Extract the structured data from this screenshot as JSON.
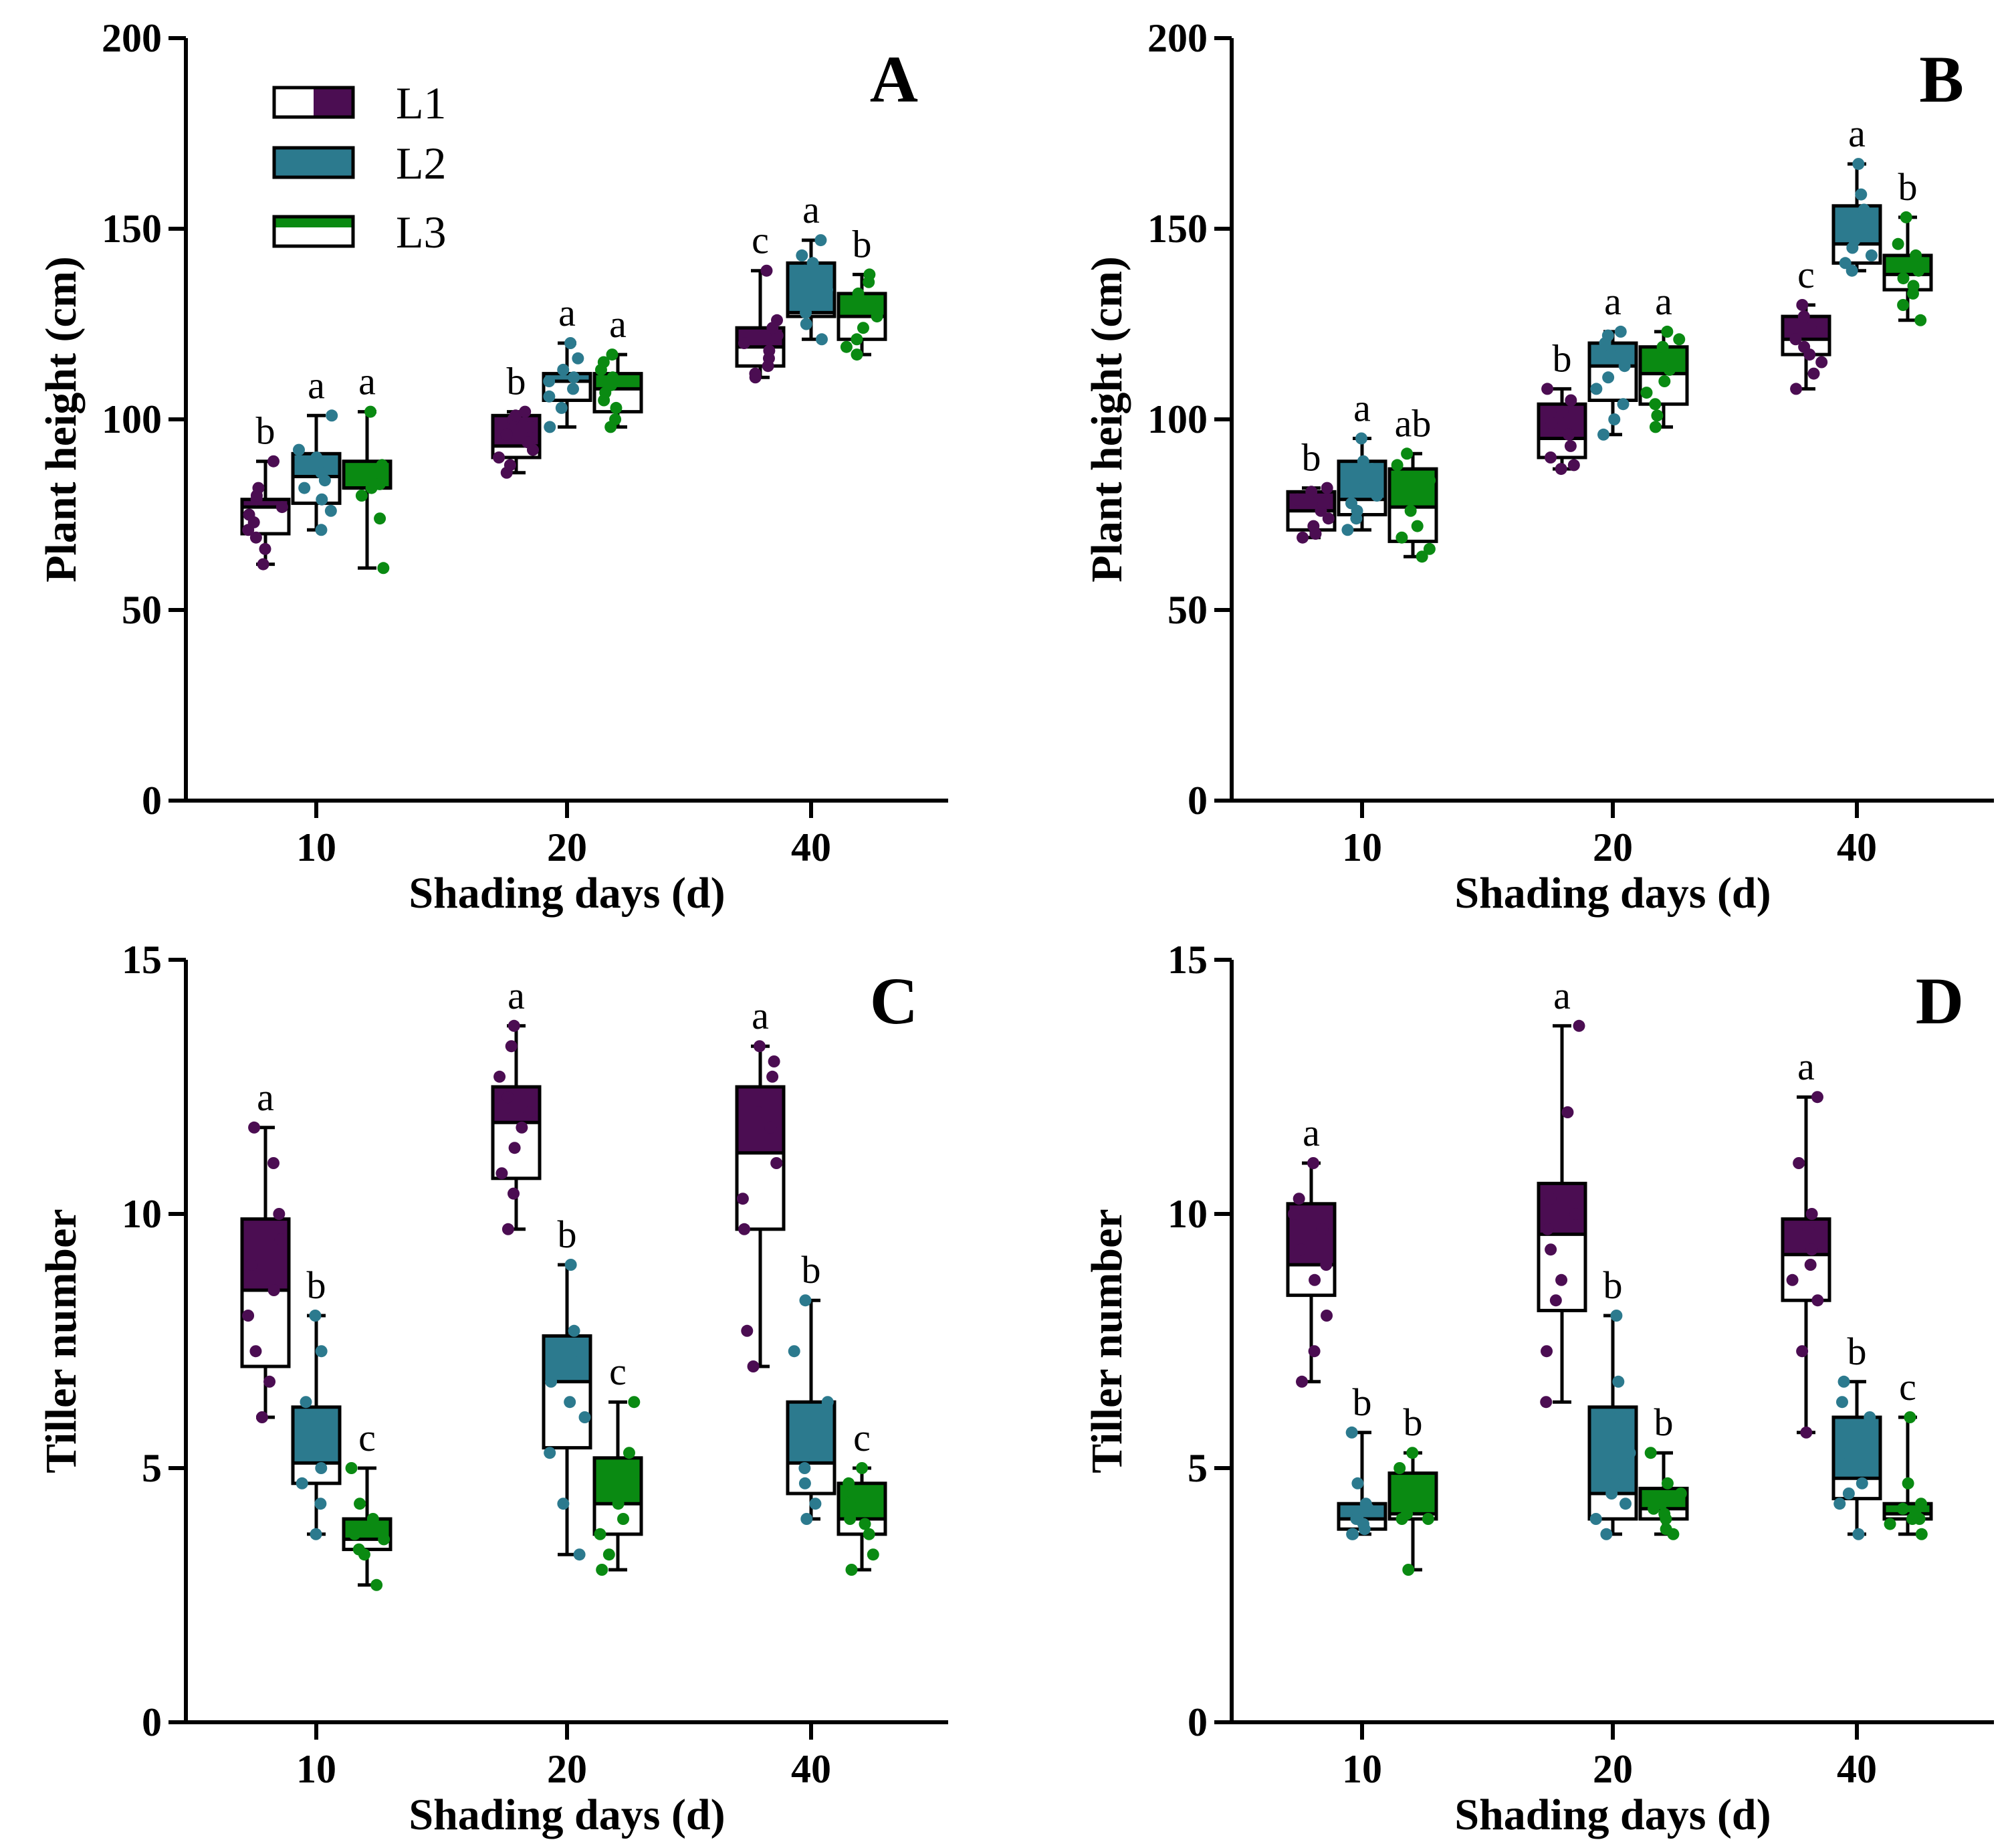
{
  "colors": {
    "L1": "#4b0d52",
    "L2": "#2c7a8e",
    "L3": "#0a8a12",
    "axis": "#000000"
  },
  "legend": [
    "L1",
    "L2",
    "L3"
  ],
  "chart_data": [
    {
      "type": "box",
      "panel": "A",
      "xlabel": "Shading days (d)",
      "ylabel": "Plant height (cm)",
      "ylim": [
        0,
        200
      ],
      "yticks": [
        0,
        50,
        100,
        150,
        200
      ],
      "categories": [
        "10",
        "20",
        "40"
      ],
      "series": [
        {
          "name": "L1",
          "boxes": [
            {
              "min": 62,
              "q1": 70,
              "median": 77,
              "q3": 79,
              "max": 89,
              "sig": "b",
              "points": [
                62,
                66,
                69,
                71,
                73,
                75,
                77,
                79,
                80,
                82,
                89
              ]
            },
            {
              "min": 86,
              "q1": 90,
              "median": 93,
              "q3": 101,
              "max": 102,
              "sig": "b",
              "points": [
                86,
                88,
                90,
                92,
                94,
                96,
                98,
                100,
                101,
                102
              ]
            },
            {
              "min": 111,
              "q1": 114,
              "median": 119,
              "q3": 124,
              "max": 139,
              "sig": "c",
              "points": [
                111,
                112,
                114,
                116,
                118,
                120,
                122,
                124,
                126,
                139
              ]
            }
          ]
        },
        {
          "name": "L2",
          "boxes": [
            {
              "min": 71,
              "q1": 78,
              "median": 85,
              "q3": 91,
              "max": 101,
              "sig": "a",
              "points": [
                71,
                76,
                79,
                82,
                84,
                86,
                88,
                90,
                92,
                101
              ]
            },
            {
              "min": 98,
              "q1": 105,
              "median": 110,
              "q3": 112,
              "max": 120,
              "sig": "a",
              "points": [
                98,
                103,
                106,
                108,
                110,
                111,
                113,
                116,
                120
              ]
            },
            {
              "min": 121,
              "q1": 127,
              "median": 128,
              "q3": 141,
              "max": 147,
              "sig": "a",
              "points": [
                121,
                125,
                128,
                131,
                134,
                137,
                139,
                141,
                143,
                147
              ]
            }
          ]
        },
        {
          "name": "L3",
          "boxes": [
            {
              "min": 61,
              "q1": 82,
              "median": 82,
              "q3": 89,
              "max": 102,
              "sig": "a",
              "points": [
                61,
                74,
                80,
                82,
                83,
                85,
                86,
                88,
                102
              ]
            },
            {
              "min": 98,
              "q1": 102,
              "median": 108,
              "q3": 112,
              "max": 117,
              "sig": "a",
              "points": [
                98,
                100,
                103,
                105,
                107,
                109,
                111,
                113,
                115,
                117
              ]
            },
            {
              "min": 117,
              "q1": 121,
              "median": 127,
              "q3": 133,
              "max": 138,
              "sig": "b",
              "points": [
                117,
                119,
                121,
                124,
                127,
                129,
                131,
                133,
                136,
                138
              ]
            }
          ]
        }
      ]
    },
    {
      "type": "box",
      "panel": "B",
      "xlabel": "Shading days (d)",
      "ylabel": "Plant height (cm)",
      "ylim": [
        0,
        200
      ],
      "yticks": [
        0,
        50,
        100,
        150,
        200
      ],
      "categories": [
        "10",
        "20",
        "40"
      ],
      "series": [
        {
          "name": "L1",
          "boxes": [
            {
              "min": 69,
              "q1": 71,
              "median": 76,
              "q3": 81,
              "max": 82,
              "sig": "b",
              "points": [
                69,
                70,
                72,
                74,
                76,
                78,
                79,
                81,
                82
              ]
            },
            {
              "min": 87,
              "q1": 90,
              "median": 95,
              "q3": 104,
              "max": 108,
              "sig": "b",
              "points": [
                87,
                88,
                90,
                93,
                96,
                99,
                102,
                105,
                108
              ]
            },
            {
              "min": 108,
              "q1": 117,
              "median": 121,
              "q3": 127,
              "max": 130,
              "sig": "c",
              "points": [
                108,
                112,
                115,
                117,
                119,
                121,
                124,
                127,
                130
              ]
            }
          ]
        },
        {
          "name": "L2",
          "boxes": [
            {
              "min": 71,
              "q1": 75,
              "median": 79,
              "q3": 89,
              "max": 95,
              "sig": "a",
              "points": [
                71,
                74,
                76,
                78,
                80,
                82,
                84,
                87,
                89,
                95
              ]
            },
            {
              "min": 96,
              "q1": 105,
              "median": 114,
              "q3": 120,
              "max": 123,
              "sig": "a",
              "points": [
                96,
                100,
                104,
                108,
                111,
                114,
                117,
                120,
                122,
                123
              ]
            },
            {
              "min": 139,
              "q1": 141,
              "median": 146,
              "q3": 156,
              "max": 167,
              "sig": "a",
              "points": [
                139,
                141,
                143,
                145,
                147,
                150,
                155,
                159,
                167
              ]
            }
          ]
        },
        {
          "name": "L3",
          "boxes": [
            {
              "min": 64,
              "q1": 68,
              "median": 77,
              "q3": 87,
              "max": 91,
              "sig": "ab",
              "points": [
                64,
                66,
                69,
                72,
                76,
                80,
                84,
                88,
                91
              ]
            },
            {
              "min": 98,
              "q1": 104,
              "median": 112,
              "q3": 119,
              "max": 123,
              "sig": "a",
              "points": [
                98,
                101,
                104,
                107,
                110,
                113,
                116,
                119,
                121,
                123
              ]
            },
            {
              "min": 126,
              "q1": 134,
              "median": 138,
              "q3": 143,
              "max": 153,
              "sig": "b",
              "points": [
                126,
                130,
                133,
                135,
                137,
                139,
                141,
                143,
                146,
                153
              ]
            }
          ]
        }
      ]
    },
    {
      "type": "box",
      "panel": "C",
      "xlabel": "Shading days (d)",
      "ylabel": "Tiller number",
      "ylim": [
        0,
        15
      ],
      "yticks": [
        0,
        5,
        10,
        15
      ],
      "categories": [
        "10",
        "20",
        "40"
      ],
      "series": [
        {
          "name": "L1",
          "boxes": [
            {
              "min": 6.0,
              "q1": 7.0,
              "median": 8.5,
              "q3": 9.9,
              "max": 11.7,
              "sig": "a",
              "points": [
                6.0,
                6.7,
                7.3,
                8.0,
                8.5,
                9.0,
                9.5,
                10.0,
                11.0,
                11.7
              ]
            },
            {
              "min": 9.7,
              "q1": 10.7,
              "median": 11.8,
              "q3": 12.5,
              "max": 13.7,
              "sig": "a",
              "points": [
                9.7,
                10.4,
                10.8,
                11.3,
                11.7,
                12.0,
                12.3,
                12.7,
                13.3,
                13.7
              ]
            },
            {
              "min": 7.0,
              "q1": 9.7,
              "median": 11.2,
              "q3": 12.5,
              "max": 13.3,
              "sig": "a",
              "points": [
                7.0,
                7.7,
                9.7,
                10.3,
                11.0,
                11.7,
                12.0,
                12.7,
                13.0,
                13.3
              ]
            }
          ]
        },
        {
          "name": "L2",
          "boxes": [
            {
              "min": 3.7,
              "q1": 4.7,
              "median": 5.1,
              "q3": 6.2,
              "max": 8.0,
              "sig": "b",
              "points": [
                3.7,
                4.3,
                4.7,
                5.0,
                5.3,
                5.7,
                6.3,
                7.3,
                8.0
              ]
            },
            {
              "min": 3.3,
              "q1": 5.4,
              "median": 6.7,
              "q3": 7.6,
              "max": 9.0,
              "sig": "b",
              "points": [
                3.3,
                4.3,
                5.3,
                6.0,
                6.3,
                6.7,
                7.0,
                7.3,
                7.7,
                9.0
              ]
            },
            {
              "min": 4.0,
              "q1": 4.5,
              "median": 5.1,
              "q3": 6.3,
              "max": 8.3,
              "sig": "b",
              "points": [
                4.0,
                4.3,
                4.7,
                5.0,
                5.3,
                5.7,
                6.3,
                7.3,
                8.3
              ]
            }
          ]
        },
        {
          "name": "L3",
          "boxes": [
            {
              "min": 2.7,
              "q1": 3.4,
              "median": 3.6,
              "q3": 4.0,
              "max": 5.0,
              "sig": "c",
              "points": [
                2.7,
                3.3,
                3.4,
                3.6,
                3.7,
                3.8,
                4.0,
                4.3,
                5.0
              ]
            },
            {
              "min": 3.0,
              "q1": 3.7,
              "median": 4.3,
              "q3": 5.2,
              "max": 6.3,
              "sig": "c",
              "points": [
                3.0,
                3.3,
                3.7,
                4.0,
                4.3,
                4.7,
                5.0,
                5.3,
                6.3
              ]
            },
            {
              "min": 3.0,
              "q1": 3.7,
              "median": 4.0,
              "q3": 4.7,
              "max": 5.0,
              "sig": "c",
              "points": [
                3.0,
                3.3,
                3.7,
                3.9,
                4.0,
                4.3,
                4.5,
                4.7,
                5.0
              ]
            }
          ]
        }
      ]
    },
    {
      "type": "box",
      "panel": "D",
      "xlabel": "Shading days (d)",
      "ylabel": "Tiller number",
      "ylim": [
        0,
        15
      ],
      "yticks": [
        0,
        5,
        10,
        15
      ],
      "categories": [
        "10",
        "20",
        "40"
      ],
      "series": [
        {
          "name": "L1",
          "boxes": [
            {
              "min": 6.7,
              "q1": 8.4,
              "median": 9.0,
              "q3": 10.2,
              "max": 11.0,
              "sig": "a",
              "points": [
                6.7,
                7.3,
                8.0,
                8.7,
                9.0,
                9.3,
                9.7,
                10.0,
                10.3,
                11.0
              ]
            },
            {
              "min": 6.3,
              "q1": 8.1,
              "median": 9.6,
              "q3": 10.6,
              "max": 13.7,
              "sig": "a",
              "points": [
                6.3,
                7.3,
                8.3,
                8.7,
                9.3,
                9.7,
                10.0,
                10.3,
                12.0,
                13.7
              ]
            },
            {
              "min": 5.7,
              "q1": 8.3,
              "median": 9.2,
              "q3": 9.9,
              "max": 12.3,
              "sig": "a",
              "points": [
                5.7,
                7.3,
                8.3,
                8.7,
                9.0,
                9.3,
                9.7,
                10.0,
                11.0,
                12.3
              ]
            }
          ]
        },
        {
          "name": "L2",
          "boxes": [
            {
              "min": 3.7,
              "q1": 3.8,
              "median": 4.0,
              "q3": 4.3,
              "max": 5.7,
              "sig": "b",
              "points": [
                3.7,
                3.7,
                3.8,
                3.9,
                4.0,
                4.0,
                4.2,
                4.3,
                4.7,
                5.7
              ]
            },
            {
              "min": 3.7,
              "q1": 4.0,
              "median": 4.5,
              "q3": 6.2,
              "max": 8.0,
              "sig": "b",
              "points": [
                3.7,
                4.0,
                4.3,
                4.5,
                4.7,
                5.0,
                5.3,
                6.0,
                6.7,
                8.0
              ]
            },
            {
              "min": 3.7,
              "q1": 4.4,
              "median": 4.8,
              "q3": 6.0,
              "max": 6.7,
              "sig": "b",
              "points": [
                3.7,
                4.3,
                4.5,
                4.7,
                5.0,
                5.3,
                6.0,
                6.3,
                6.7
              ]
            }
          ]
        },
        {
          "name": "L3",
          "boxes": [
            {
              "min": 3.0,
              "q1": 4.0,
              "median": 4.1,
              "q3": 4.9,
              "max": 5.3,
              "sig": "b",
              "points": [
                3.0,
                4.0,
                4.0,
                4.1,
                4.3,
                4.5,
                4.7,
                5.0,
                5.3
              ]
            },
            {
              "min": 3.7,
              "q1": 4.0,
              "median": 4.2,
              "q3": 4.6,
              "max": 5.3,
              "sig": "b",
              "points": [
                3.7,
                3.8,
                4.0,
                4.1,
                4.2,
                4.3,
                4.5,
                4.7,
                5.3
              ]
            },
            {
              "min": 3.7,
              "q1": 4.0,
              "median": 4.1,
              "q3": 4.3,
              "max": 6.0,
              "sig": "c",
              "points": [
                3.7,
                3.9,
                4.0,
                4.0,
                4.1,
                4.2,
                4.3,
                4.7,
                6.0
              ]
            }
          ]
        }
      ]
    }
  ]
}
